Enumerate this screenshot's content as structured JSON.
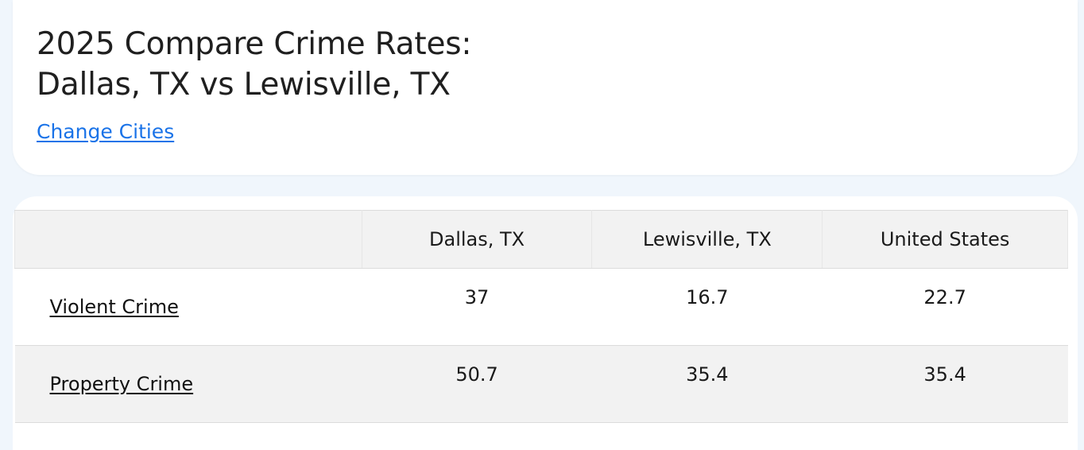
{
  "header": {
    "title_line1": "2025 Compare Crime Rates:",
    "title_line2": "Dallas, TX vs Lewisville, TX",
    "change_link": "Change Cities"
  },
  "table": {
    "columns": [
      "",
      "Dallas, TX",
      "Lewisville, TX",
      "United States"
    ],
    "rows": [
      {
        "label": "Violent Crime",
        "values": [
          "37",
          "16.7",
          "22.7"
        ]
      },
      {
        "label": "Property Crime",
        "values": [
          "50.7",
          "35.4",
          "35.4"
        ]
      }
    ]
  },
  "colors": {
    "link_blue": "#1a73e8",
    "page_bg": "#f0f6fc",
    "header_row_bg": "#f2f2f2"
  }
}
